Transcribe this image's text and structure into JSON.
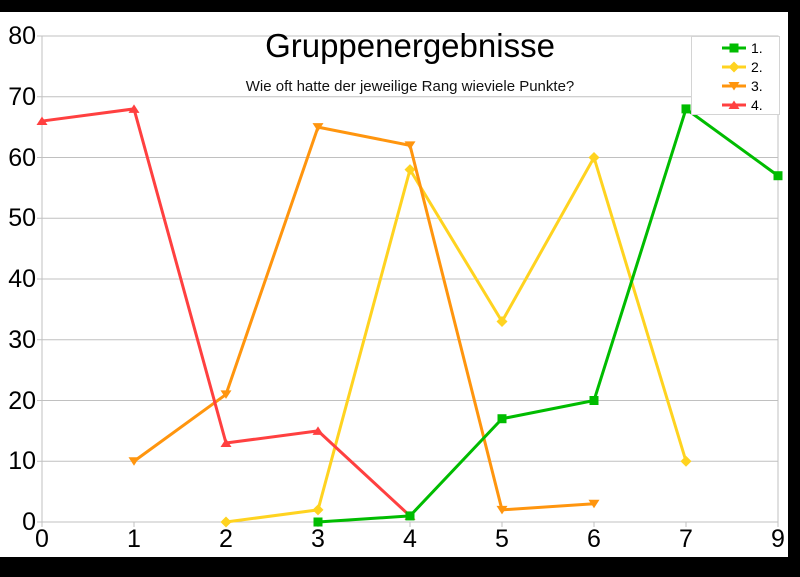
{
  "frame": {
    "background": "#000000",
    "chart_background": "#ffffff"
  },
  "chart_data": {
    "type": "line",
    "title": "Gruppenergebnisse",
    "subtitle": "Wie oft hatte der jeweilige Rang wieviele Punkte?",
    "categories": [
      "0",
      "1",
      "2",
      "3",
      "4",
      "5",
      "6",
      "7",
      "9"
    ],
    "y_ticks": [
      0,
      10,
      20,
      30,
      40,
      50,
      60,
      70,
      80
    ],
    "ylim": [
      0,
      80
    ],
    "grid": "horizontal-only",
    "legend_position": "top-right",
    "colors": {
      "grid": "#c0c0c0",
      "text": "#000000",
      "background": "#ffffff"
    },
    "series": [
      {
        "name": "1.",
        "color": "#00BC00",
        "marker": "square",
        "points": [
          [
            3,
            0
          ],
          [
            4,
            1
          ],
          [
            5,
            17
          ],
          [
            6,
            20
          ],
          [
            7,
            68
          ],
          [
            9,
            57
          ]
        ]
      },
      {
        "name": "2.",
        "color": "#FFD320",
        "marker": "diamond",
        "points": [
          [
            2,
            0
          ],
          [
            3,
            2
          ],
          [
            4,
            58
          ],
          [
            5,
            33
          ],
          [
            6,
            60
          ],
          [
            7,
            10
          ]
        ]
      },
      {
        "name": "3.",
        "color": "#FF950E",
        "marker": "triangle-down",
        "points": [
          [
            1,
            10
          ],
          [
            2,
            21
          ],
          [
            3,
            65
          ],
          [
            4,
            62
          ],
          [
            5,
            2
          ],
          [
            6,
            3
          ]
        ]
      },
      {
        "name": "4.",
        "color": "#FF4040",
        "marker": "triangle-up",
        "points": [
          [
            0,
            66
          ],
          [
            1,
            68
          ],
          [
            2,
            13
          ],
          [
            3,
            15
          ],
          [
            4,
            1
          ]
        ]
      }
    ]
  }
}
